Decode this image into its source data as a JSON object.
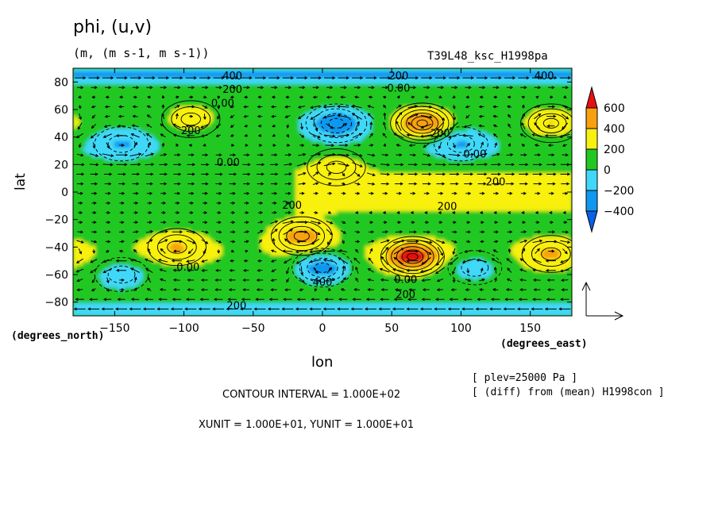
{
  "chart_data": {
    "type": "heatmap",
    "title": "phi, (u,v)",
    "units": "(m, (m s-1, m s-1))",
    "experiment": "T39L48_ksc_H1998pa",
    "xlabel": "lon",
    "ylabel": "lat",
    "x_units": "(degrees_east)",
    "y_units": "(degrees_north)",
    "xlim": [
      -180,
      180
    ],
    "ylim": [
      -90,
      90
    ],
    "x_ticks": [
      -150,
      -100,
      -50,
      0,
      50,
      100,
      150
    ],
    "y_ticks": [
      -80,
      -60,
      -40,
      -20,
      0,
      20,
      40,
      60,
      80
    ],
    "colorbar": {
      "levels": [
        -400,
        -200,
        0,
        200,
        400,
        600
      ],
      "labels": [
        "600",
        "400",
        "200",
        "0",
        "−200",
        "−400"
      ],
      "colors": [
        "#0a60e8",
        "#1098f0",
        "#40d8f8",
        "#22c822",
        "#f8f010",
        "#f8a010",
        "#e81010"
      ]
    },
    "anomalies": [
      {
        "lon": 72,
        "lat": 50,
        "value": 600
      },
      {
        "lon": 65,
        "lat": -47,
        "value": 600
      },
      {
        "lon": -15,
        "lat": -32,
        "value": 400
      },
      {
        "lon": 165,
        "lat": 50,
        "value": 400
      },
      {
        "lon": -95,
        "lat": 53,
        "value": 300
      },
      {
        "lon": -105,
        "lat": -40,
        "value": 300
      },
      {
        "lon": 165,
        "lat": -45,
        "value": 300
      },
      {
        "lon": 10,
        "lat": 18,
        "value": 300
      },
      {
        "lon": 10,
        "lat": 50,
        "value": -400
      },
      {
        "lon": 0,
        "lat": -55,
        "value": -400
      },
      {
        "lon": 100,
        "lat": 35,
        "value": -200
      },
      {
        "lon": -145,
        "lat": 35,
        "value": -200
      },
      {
        "lon": -145,
        "lat": -60,
        "value": -200
      },
      {
        "lon": 110,
        "lat": -55,
        "value": -200
      }
    ],
    "contour_labels": [
      {
        "text": "400",
        "lon": -65,
        "lat": 82
      },
      {
        "text": "200",
        "lon": -65,
        "lat": 72
      },
      {
        "text": "0.00",
        "lon": -72,
        "lat": 62
      },
      {
        "text": "200",
        "lon": -95,
        "lat": 42
      },
      {
        "text": "0.00",
        "lon": -68,
        "lat": 19
      },
      {
        "text": "200",
        "lon": 55,
        "lat": 82
      },
      {
        "text": "0.00",
        "lon": 55,
        "lat": 73
      },
      {
        "text": "400",
        "lon": 160,
        "lat": 82
      },
      {
        "text": "200",
        "lon": 85,
        "lat": 40
      },
      {
        "text": "0.00",
        "lon": 110,
        "lat": 25
      },
      {
        "text": "200",
        "lon": 125,
        "lat": 5
      },
      {
        "text": "200",
        "lon": -22,
        "lat": -12
      },
      {
        "text": "200",
        "lon": 90,
        "lat": -13
      },
      {
        "text": "0.00",
        "lon": -97,
        "lat": -57
      },
      {
        "text": "400",
        "lon": 0,
        "lat": -68
      },
      {
        "text": "0.00",
        "lon": 60,
        "lat": -66
      },
      {
        "text": "200",
        "lon": 60,
        "lat": -77
      },
      {
        "text": "200",
        "lon": -62,
        "lat": -85
      }
    ],
    "grid": false,
    "legend": "right"
  },
  "annotations": {
    "plev": "[ plev=25000 Pa ]",
    "diff": "[ (diff) from (mean) H1998con ]",
    "contour_interval": "CONTOUR INTERVAL = 1.000E+02",
    "vector_units": "XUNIT = 1.000E+01, YUNIT = 1.000E+01"
  }
}
